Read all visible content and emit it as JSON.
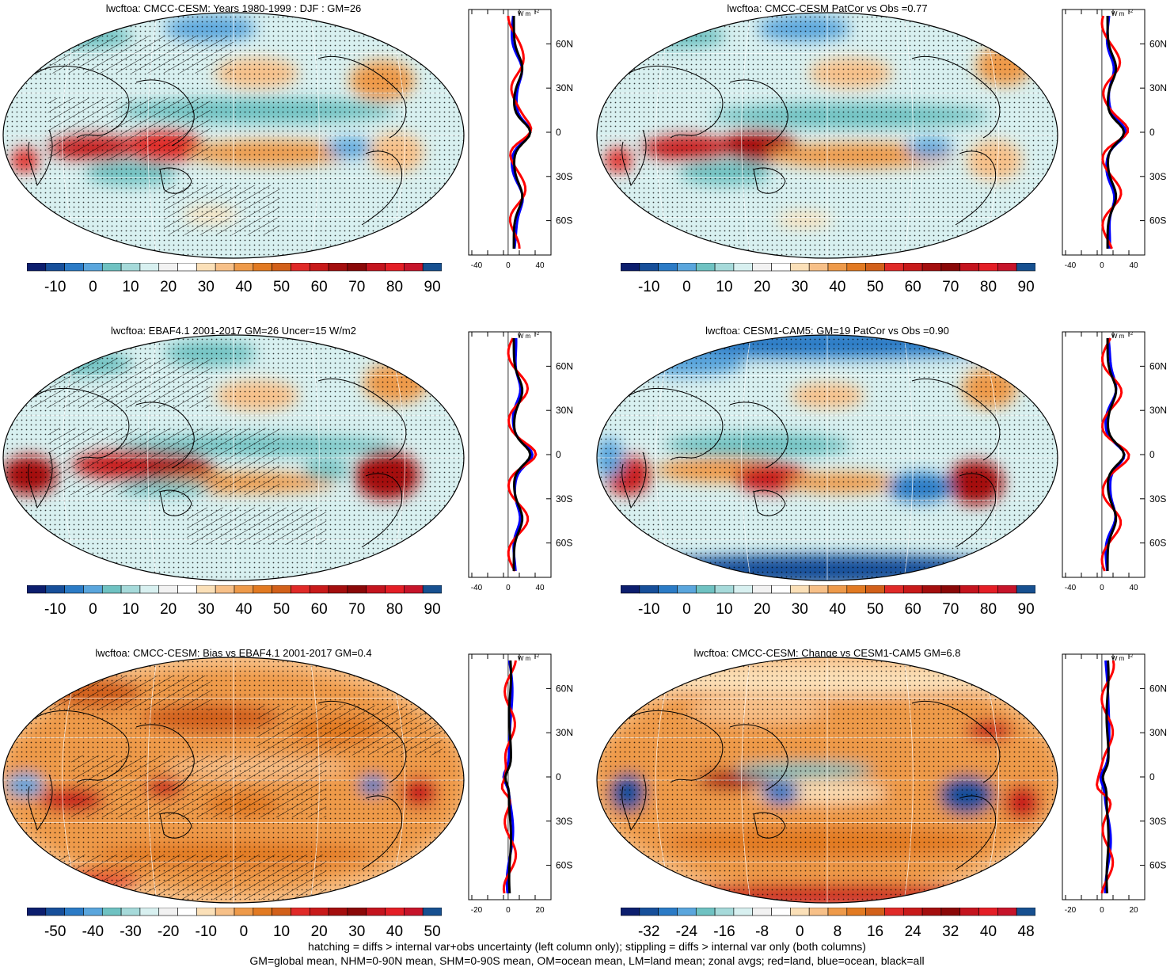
{
  "panels": [
    {
      "title": "lwcftoa: CMCC-CESM: Years 1980-1999 : DJF : GM=26",
      "colorbar": [
        "-10",
        "0",
        "10",
        "20",
        "30",
        "40",
        "50",
        "60",
        "70",
        "80",
        "90"
      ],
      "zonal_xticks": [
        "-40",
        "0",
        "40"
      ],
      "hatched": true
    },
    {
      "title": "lwcftoa: CMCC-CESM PatCor vs Obs =0.77",
      "colorbar": [
        "-10",
        "0",
        "10",
        "20",
        "30",
        "40",
        "50",
        "60",
        "70",
        "80",
        "90"
      ],
      "zonal_xticks": [
        "-40",
        "0",
        "40"
      ],
      "hatched": false
    },
    {
      "title": "lwcftoa: EBAF4.1 2001-2017 GM=26 Uncer=15 W/m2",
      "colorbar": [
        "-10",
        "0",
        "10",
        "20",
        "30",
        "40",
        "50",
        "60",
        "70",
        "80",
        "90"
      ],
      "zonal_xticks": [
        "-40",
        "0",
        "40"
      ],
      "hatched": true
    },
    {
      "title": "lwcftoa: CESM1-CAM5: GM=19 PatCor vs Obs =0.90",
      "colorbar": [
        "-10",
        "0",
        "10",
        "20",
        "30",
        "40",
        "50",
        "60",
        "70",
        "80",
        "90"
      ],
      "zonal_xticks": [
        "-40",
        "0",
        "40"
      ],
      "hatched": false
    },
    {
      "title": "lwcftoa: CMCC-CESM: Bias vs EBAF4.1 2001-2017 GM=0.4",
      "colorbar": [
        "-50",
        "-40",
        "-30",
        "-20",
        "-10",
        "0",
        "10",
        "20",
        "30",
        "40",
        "50"
      ],
      "zonal_xticks": [
        "-20",
        "0",
        "20"
      ],
      "hatched": true
    },
    {
      "title": "lwcftoa: CMCC-CESM: Change vs CESM1-CAM5 GM=6.8",
      "colorbar": [
        "-32",
        "-24",
        "-16",
        "-8",
        "0",
        "8",
        "16",
        "24",
        "32",
        "40",
        "48"
      ],
      "zonal_xticks": [
        "-20",
        "0",
        "20"
      ],
      "hatched": false
    }
  ],
  "lat_labels": [
    "60N",
    "30N",
    "0",
    "30S",
    "60S"
  ],
  "units_label": "W m",
  "units_exp": "-2",
  "palette": [
    "#0c1e6e",
    "#174f9a",
    "#2b7bc6",
    "#5aa6dd",
    "#6fc2c2",
    "#a6dada",
    "#d8f0f0",
    "#f2f2f2",
    "#ffffff",
    "#fbe0b8",
    "#f7c088",
    "#ee9a4a",
    "#e27a22",
    "#d2601a",
    "#e02a28",
    "#c81a1a",
    "#a40e0e",
    "#8a0808",
    "#c4141e",
    "#e41e26",
    "#c6142a",
    "#175090"
  ],
  "line_colors": {
    "land": "#ff0000",
    "ocean": "#0000ff",
    "all": "#000000"
  },
  "footer_line1": "hatching = diffs > internal var+obs uncertainty (left column only); stippling = diffs > internal var only (both columns)",
  "footer_line2": "GM=global mean, NHM=0-90N mean, SHM=0-90S mean, OM=ocean mean, LM=land mean; zonal avgs; red=land, blue=ocean, black=all"
}
